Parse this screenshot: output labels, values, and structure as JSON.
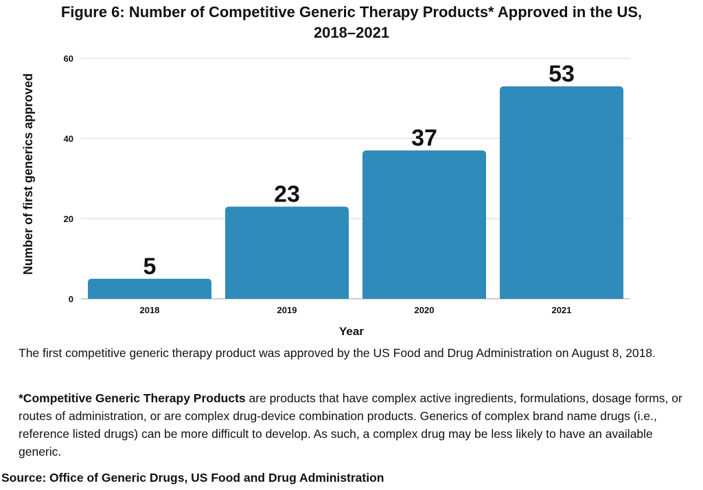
{
  "title_line1": "Figure 6: Number of Competitive Generic Therapy Products* Approved in the US,",
  "title_line2": "2018–2021",
  "chart_data": {
    "type": "bar",
    "categories": [
      "2018",
      "2019",
      "2020",
      "2021"
    ],
    "values": [
      5,
      23,
      37,
      53
    ],
    "data_labels": [
      "5",
      "23",
      "37",
      "53"
    ],
    "xlabel": "Year",
    "ylabel": "Number of first generics approved",
    "ylim": [
      0,
      60
    ],
    "yticks": [
      0,
      20,
      40,
      60
    ],
    "grid": true,
    "bar_color": "#2e8bba",
    "grid_color": "#d4d4d4"
  },
  "note_first": "The first competitive generic therapy product was approved by the US Food and Drug Administration on August 8, 2018.",
  "note_def_term": "*Competitive Generic Therapy Products",
  "note_def_body": " are products that have complex active ingredients, formulations, dosage forms, or routes of administration, or are complex drug-device combination products. Generics of complex brand name drugs (i.e., reference listed drugs) can be more difficult to develop. As such, a complex drug may be less likely to have an available generic.",
  "source": "Source: Office of Generic Drugs, US Food and Drug Administration"
}
